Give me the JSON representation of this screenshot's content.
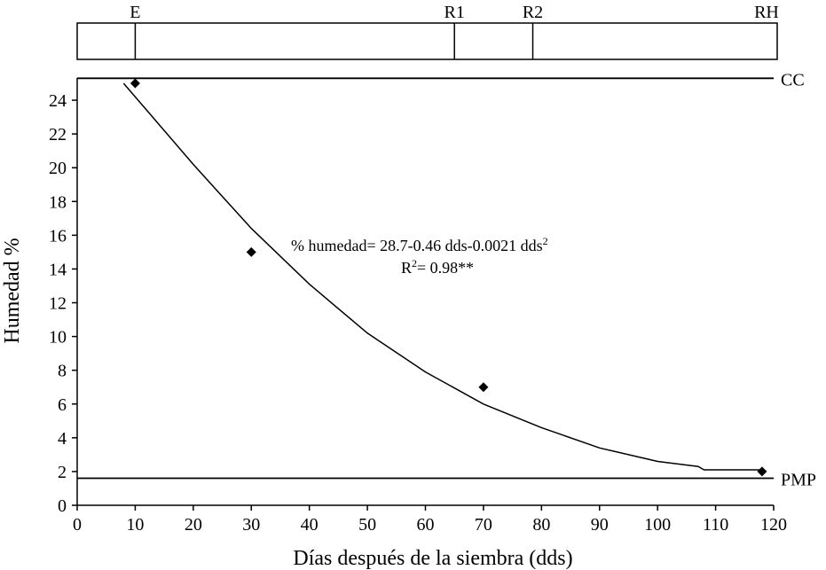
{
  "chart_data": {
    "type": "scatter",
    "xlabel": "Días después de la siembra (dds)",
    "ylabel": "Humedad %",
    "xlim": [
      0,
      120
    ],
    "ylim": [
      0,
      25
    ],
    "xticks": [
      0,
      10,
      20,
      30,
      40,
      50,
      60,
      70,
      80,
      90,
      100,
      110,
      120
    ],
    "yticks": [
      0,
      2,
      4,
      6,
      8,
      10,
      12,
      14,
      16,
      18,
      20,
      22,
      24
    ],
    "grid": false,
    "points": [
      {
        "x": 10,
        "y": 25
      },
      {
        "x": 30,
        "y": 15
      },
      {
        "x": 70,
        "y": 7
      },
      {
        "x": 118,
        "y": 2
      }
    ],
    "fit": {
      "equation_prefix": "% humedad= 28.7-0.46 dds-0.0021 dds",
      "equation_superscript": "2",
      "r2_prefix": "R",
      "r2_superscript": "2",
      "r2_suffix": "= 0.98**",
      "x_range": [
        8,
        118
      ],
      "curve_points": [
        {
          "x": 8,
          "y": 25
        },
        {
          "x": 10,
          "y": 24.2
        },
        {
          "x": 20,
          "y": 20.2
        },
        {
          "x": 30,
          "y": 16.4
        },
        {
          "x": 40,
          "y": 13.1
        },
        {
          "x": 50,
          "y": 10.2
        },
        {
          "x": 60,
          "y": 7.9
        },
        {
          "x": 70,
          "y": 6
        },
        {
          "x": 80,
          "y": 4.6
        },
        {
          "x": 90,
          "y": 3.4
        },
        {
          "x": 100,
          "y": 2.6
        },
        {
          "x": 107,
          "y": 2.3
        },
        {
          "x": 108,
          "y": 2.1
        },
        {
          "x": 118,
          "y": 2.1
        }
      ]
    },
    "reference_lines": [
      {
        "label": "CC",
        "y": 25.3
      },
      {
        "label": "PMP",
        "y": 1.6
      }
    ],
    "stages": [
      {
        "label": "E",
        "x": 10
      },
      {
        "label": "R1",
        "x": 65
      },
      {
        "label": "R2",
        "x": 78.5
      },
      {
        "label": "RH",
        "x": 120
      }
    ]
  }
}
